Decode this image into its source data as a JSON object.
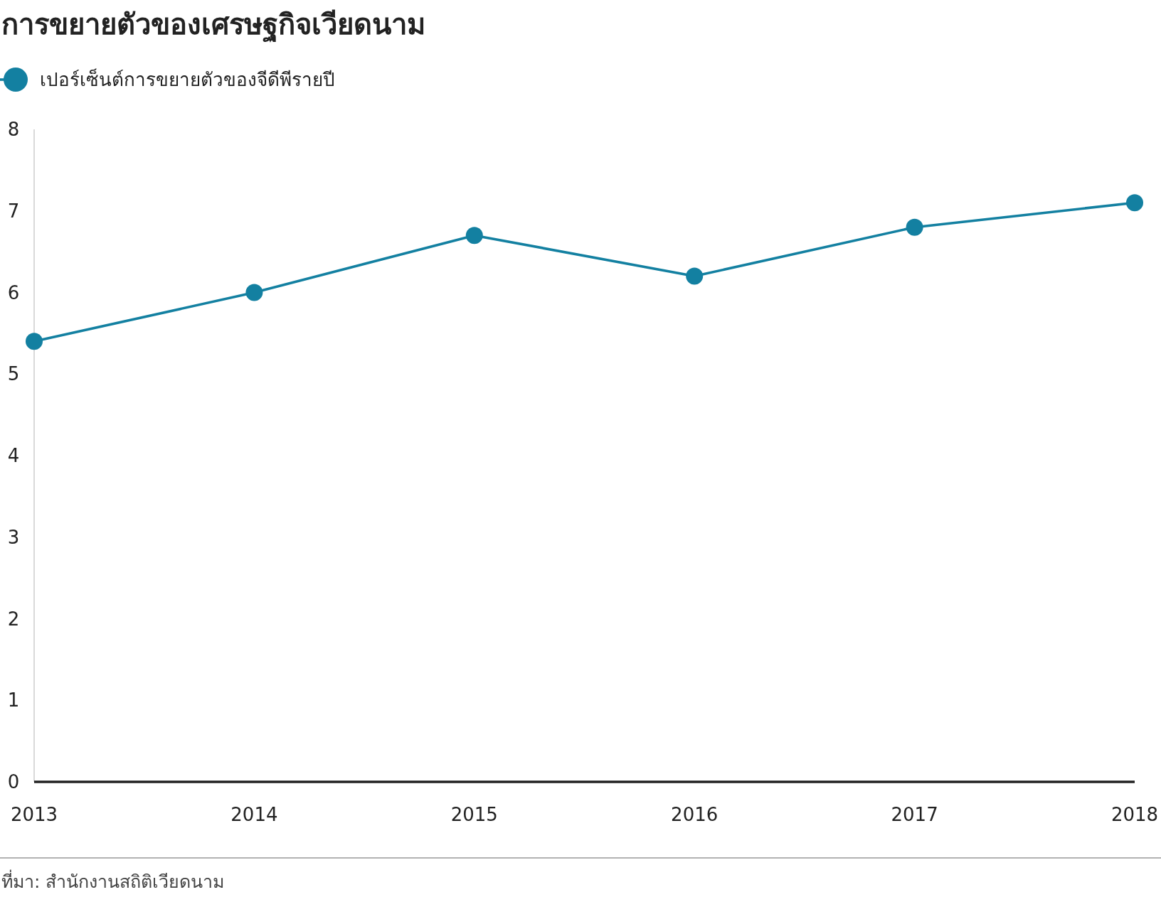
{
  "chart_data": {
    "type": "line",
    "title": "การขยายตัวของเศรษฐกิจเวียดนาม",
    "x": [
      2013,
      2014,
      2015,
      2016,
      2017,
      2018
    ],
    "series": [
      {
        "name": "เปอร์เซ็นต์การขยายตัวของจีดีพีรายปี",
        "color": "#1380a1",
        "values": [
          5.4,
          6.0,
          6.7,
          6.2,
          6.8,
          7.1
        ]
      }
    ],
    "xlim": [
      2013,
      2018
    ],
    "xticks": [
      2013,
      2014,
      2015,
      2016,
      2017,
      2018
    ],
    "ylim": [
      0,
      8
    ],
    "yticks": [
      0,
      1,
      2,
      3,
      4,
      5,
      6,
      7,
      8
    ],
    "grid": false,
    "legend": "top left",
    "marker": "circle",
    "line_style": "solid",
    "annotations": [
      "ที่มา: สำนักงานสถิติเวียดนาม"
    ]
  }
}
